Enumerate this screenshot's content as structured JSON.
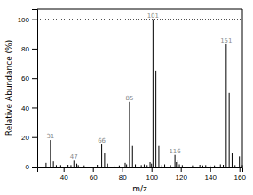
{
  "chart_data": {
    "type": "stem",
    "xlabel": "m/z",
    "ylabel": "Relative Abundance (%)",
    "x": [
      28,
      31,
      33,
      35,
      38,
      43,
      45,
      47,
      49,
      50,
      54,
      63,
      66,
      68,
      70,
      75,
      78,
      82,
      83,
      85,
      87,
      89,
      93,
      95,
      97,
      99,
      100,
      101,
      103,
      105,
      107,
      109,
      113,
      116,
      117,
      118,
      119,
      121,
      128,
      133,
      135,
      137,
      140,
      143,
      147,
      149,
      151,
      153,
      155,
      157,
      160,
      162
    ],
    "values": [
      2.5,
      18.0,
      3.5,
      1.0,
      1.0,
      1.2,
      1.0,
      4.0,
      2.0,
      1.0,
      0.8,
      1.2,
      15.0,
      9.0,
      2.0,
      0.8,
      0.8,
      2.5,
      1.5,
      44.0,
      14.0,
      1.5,
      1.0,
      1.5,
      1.0,
      3.0,
      2.0,
      100.0,
      65.0,
      14.0,
      1.0,
      1.5,
      1.0,
      8.0,
      3.0,
      4.5,
      1.5,
      1.0,
      0.8,
      1.2,
      0.8,
      1.0,
      0.8,
      0.8,
      1.5,
      1.2,
      83.0,
      50.0,
      9.0,
      1.0,
      7.0,
      1.0
    ],
    "color": "#000000",
    "xlim": [
      22,
      162
    ],
    "ylim": [
      0,
      107
    ],
    "xticks": [
      40,
      60,
      80,
      100,
      120,
      140,
      160
    ],
    "yticks": [
      0,
      20,
      40,
      60,
      80,
      100
    ],
    "grid": false,
    "reference_lines": [
      {
        "y": 100,
        "line_style": "dotted",
        "color": "#000000"
      }
    ],
    "annotations": [
      {
        "text": "31",
        "x": 31,
        "y": 18.0,
        "color": "#888888"
      },
      {
        "text": "47",
        "x": 47,
        "y": 4.0,
        "color": "#888888"
      },
      {
        "text": "66",
        "x": 66,
        "y": 15.0,
        "color": "#888888"
      },
      {
        "text": "85",
        "x": 85,
        "y": 44.0,
        "color": "#888888"
      },
      {
        "text": "101",
        "x": 101,
        "y": 100.0,
        "color": "#888888"
      },
      {
        "text": "116",
        "x": 116,
        "y": 8.0,
        "color": "#888888"
      },
      {
        "text": "151",
        "x": 151,
        "y": 83.0,
        "color": "#888888"
      }
    ]
  }
}
